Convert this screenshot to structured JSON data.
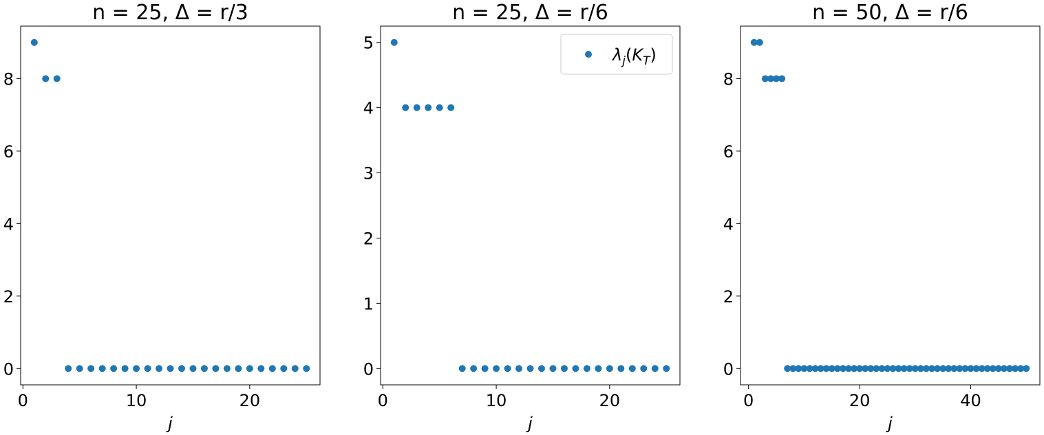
{
  "chart_data": [
    {
      "type": "scatter",
      "title": "n = 25, Δ = r/3",
      "xlabel": "j",
      "ylabel": "",
      "xlim": [
        -0.2,
        26.2
      ],
      "ylim": [
        -0.45,
        9.45
      ],
      "xticks": [
        0,
        10,
        20
      ],
      "yticks": [
        0,
        2,
        4,
        6,
        8
      ],
      "grid": false,
      "series": [
        {
          "color": "#1f77b4",
          "x": [
            1,
            2,
            3,
            4,
            5,
            6,
            7,
            8,
            9,
            10,
            11,
            12,
            13,
            14,
            15,
            16,
            17,
            18,
            19,
            20,
            21,
            22,
            23,
            24,
            25
          ],
          "y": [
            9,
            8,
            8,
            0,
            0,
            0,
            0,
            0,
            0,
            0,
            0,
            0,
            0,
            0,
            0,
            0,
            0,
            0,
            0,
            0,
            0,
            0,
            0,
            0,
            0
          ]
        }
      ]
    },
    {
      "type": "scatter",
      "title": "n = 25, Δ = r/6",
      "xlabel": "j",
      "ylabel": "",
      "xlim": [
        -0.2,
        26.2
      ],
      "ylim": [
        -0.25,
        5.25
      ],
      "xticks": [
        0,
        10,
        20
      ],
      "yticks": [
        0,
        1,
        2,
        3,
        4,
        5
      ],
      "grid": false,
      "legend": {
        "placement": "top-right",
        "entries": [
          "λj(KT)"
        ]
      },
      "series": [
        {
          "name": "λj(KT)",
          "color": "#1f77b4",
          "x": [
            1,
            2,
            3,
            4,
            5,
            6,
            7,
            8,
            9,
            10,
            11,
            12,
            13,
            14,
            15,
            16,
            17,
            18,
            19,
            20,
            21,
            22,
            23,
            24,
            25
          ],
          "y": [
            5,
            4,
            4,
            4,
            4,
            4,
            0,
            0,
            0,
            0,
            0,
            0,
            0,
            0,
            0,
            0,
            0,
            0,
            0,
            0,
            0,
            0,
            0,
            0,
            0
          ]
        }
      ]
    },
    {
      "type": "scatter",
      "title": "n = 50, Δ = r/6",
      "xlabel": "j",
      "ylabel": "",
      "xlim": [
        -1.45,
        52.45
      ],
      "ylim": [
        -0.45,
        9.45
      ],
      "xticks": [
        0,
        20,
        40
      ],
      "yticks": [
        0,
        2,
        4,
        6,
        8
      ],
      "grid": false,
      "series": [
        {
          "color": "#1f77b4",
          "x": [
            1,
            2,
            3,
            4,
            5,
            6,
            7,
            8,
            9,
            10,
            11,
            12,
            13,
            14,
            15,
            16,
            17,
            18,
            19,
            20,
            21,
            22,
            23,
            24,
            25,
            26,
            27,
            28,
            29,
            30,
            31,
            32,
            33,
            34,
            35,
            36,
            37,
            38,
            39,
            40,
            41,
            42,
            43,
            44,
            45,
            46,
            47,
            48,
            49,
            50
          ],
          "y": [
            9,
            9,
            8,
            8,
            8,
            8,
            0,
            0,
            0,
            0,
            0,
            0,
            0,
            0,
            0,
            0,
            0,
            0,
            0,
            0,
            0,
            0,
            0,
            0,
            0,
            0,
            0,
            0,
            0,
            0,
            0,
            0,
            0,
            0,
            0,
            0,
            0,
            0,
            0,
            0,
            0,
            0,
            0,
            0,
            0,
            0,
            0,
            0,
            0,
            0
          ]
        }
      ]
    }
  ]
}
